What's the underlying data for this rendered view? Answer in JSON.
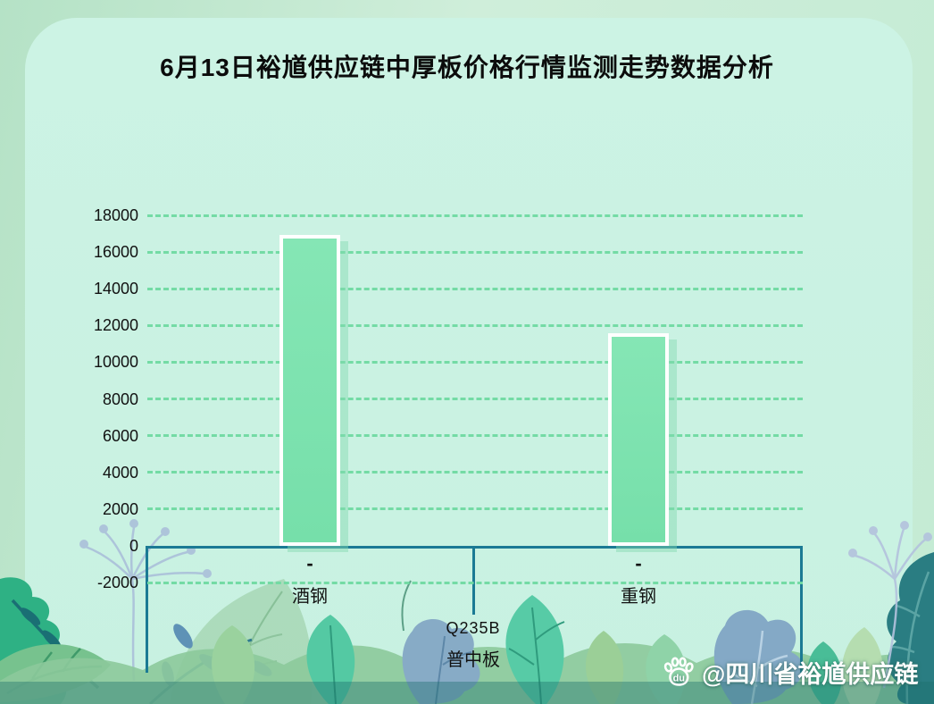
{
  "title": "6月13日裕馗供应链中厚板价格行情监测走势数据分析",
  "watermark": {
    "label": "@四川省裕馗供应链",
    "icon": "baidu-paw-icon",
    "color": "#ffffff"
  },
  "chart_data": {
    "type": "bar",
    "title": "6月13日裕馗供应链中厚板价格行情监测走势数据分析",
    "categories": [
      "酒钢",
      "重钢"
    ],
    "values": [
      16950,
      11580
    ],
    "value_labels": [
      "-",
      "-"
    ],
    "x_axis_levels": [
      "Q235B",
      "普中板"
    ],
    "ylim": [
      -2000,
      18000
    ],
    "yticks": [
      18000,
      16000,
      14000,
      12000,
      10000,
      8000,
      6000,
      4000,
      2000,
      0,
      -2000
    ],
    "ytick_step": 2000,
    "grid": "horizontal-dashed",
    "legend": "none",
    "colors": {
      "bar_fill": "#7de2ae",
      "bar_border": "#ffffff",
      "bar_shadow": "#a5e7cc",
      "grid": "#70daa2",
      "axis": "#1b7a94",
      "card_background": "#cdf3e4",
      "outer_background": "#bfe7cf",
      "title_text": "#0c0c0c"
    }
  }
}
